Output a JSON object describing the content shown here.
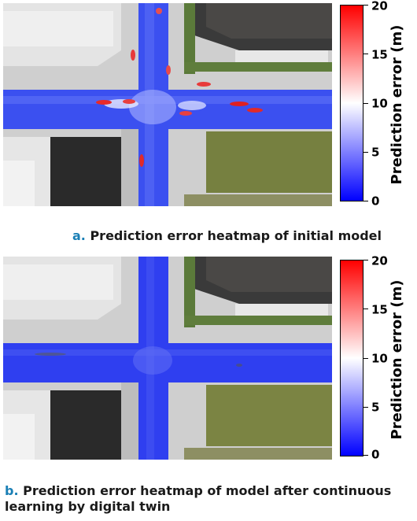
{
  "panels": [
    {
      "letter": "a.",
      "caption": "Prediction error heatmap of initial model",
      "colorbar": {
        "title": "Prediction error (m)",
        "ticks": [
          "20",
          "15",
          "10",
          "5",
          "0"
        ],
        "colors": [
          "#ff0000",
          "#ffffff",
          "#0000ff"
        ]
      }
    },
    {
      "letter": "b.",
      "caption_line1": "Prediction error heatmap of model after continuous",
      "caption_line2": "learning by digital twin",
      "colorbar": {
        "title": "Prediction error (m)",
        "ticks": [
          "20",
          "15",
          "10",
          "5",
          "0"
        ],
        "colors": [
          "#ff0000",
          "#ffffff",
          "#0000ff"
        ]
      }
    }
  ]
}
